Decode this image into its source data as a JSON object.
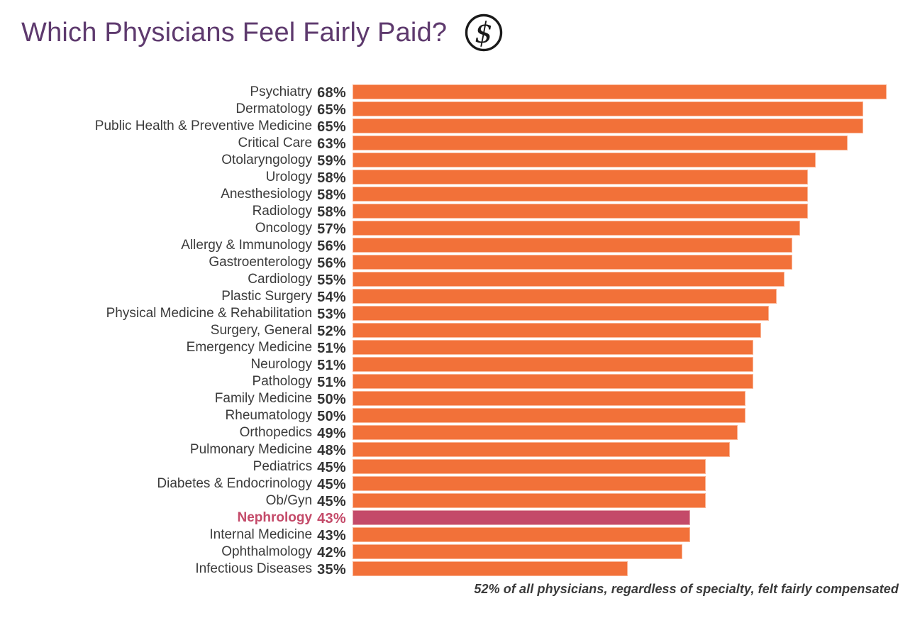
{
  "header": {
    "title": "Which Physicians Feel Fairly Paid?",
    "icon": "dollar-circle-icon",
    "title_color": "#5E3A6E"
  },
  "footnote": {
    "text": "52% of all physicians, regardless of specialty, felt fairly compensated"
  },
  "colors": {
    "bar_orange": "#F27139",
    "bar_highlight": "#C44A69",
    "title_purple": "#5E3A6E",
    "label_text": "#3B3B3B",
    "icon_black": "#1A1A1A"
  },
  "chart_data": {
    "type": "bar",
    "orientation": "horizontal",
    "title": "Which Physicians Feel Fairly Paid?",
    "unit": "%",
    "xlim": [
      0,
      68
    ],
    "grid": false,
    "legend": "none",
    "categories": [
      "Psychiatry",
      "Dermatology",
      "Public Health & Preventive Medicine",
      "Critical Care",
      "Otolaryngology",
      "Urology",
      "Anesthesiology",
      "Radiology",
      "Oncology",
      "Allergy & Immunology",
      "Gastroenterology",
      "Cardiology",
      "Plastic Surgery",
      "Physical Medicine & Rehabilitation",
      "Surgery, General",
      "Emergency Medicine",
      "Neurology",
      "Pathology",
      "Family Medicine",
      "Rheumatology",
      "Orthopedics",
      "Pulmonary Medicine",
      "Pediatrics",
      "Diabetes & Endocrinology",
      "Ob/Gyn",
      "Nephrology",
      "Internal Medicine",
      "Ophthalmology",
      "Infectious Diseases"
    ],
    "values": [
      68,
      65,
      65,
      63,
      59,
      58,
      58,
      58,
      57,
      56,
      56,
      55,
      54,
      53,
      52,
      51,
      51,
      51,
      50,
      50,
      49,
      48,
      45,
      45,
      45,
      43,
      43,
      42,
      35
    ],
    "highlight_category": "Nephrology",
    "bar_color": "#F27139",
    "highlight_color": "#C44A69",
    "annotation": "52% of all physicians, regardless of specialty, felt fairly compensated"
  }
}
